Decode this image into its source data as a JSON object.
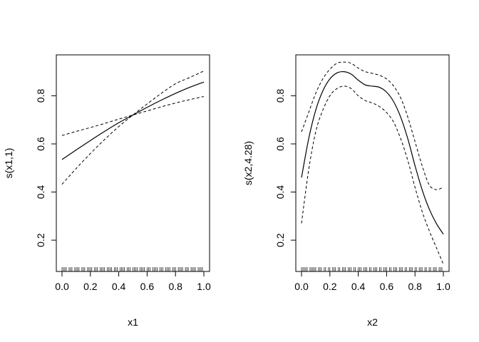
{
  "chart_data": [
    {
      "type": "line",
      "xlabel": "x1",
      "ylabel": "s(x1,1)",
      "xlim": [
        0,
        1
      ],
      "ylim": [
        0.07,
        0.97
      ],
      "xticks": [
        0.0,
        0.2,
        0.4,
        0.6,
        0.8,
        1.0
      ],
      "xtick_labels": [
        "0.0",
        "0.2",
        "0.4",
        "0.6",
        "0.8",
        "1.0"
      ],
      "yticks": [
        0.2,
        0.4,
        0.6,
        0.8
      ],
      "ytick_labels": [
        "0.2",
        "0.4",
        "0.6",
        "0.8"
      ],
      "series": [
        {
          "style": "solid",
          "x": [
            0.0,
            0.1,
            0.2,
            0.3,
            0.4,
            0.5,
            0.6,
            0.7,
            0.8,
            0.9,
            1.0
          ],
          "y": [
            0.535,
            0.575,
            0.614,
            0.652,
            0.688,
            0.72,
            0.752,
            0.782,
            0.81,
            0.835,
            0.857
          ]
        },
        {
          "style": "dashed",
          "x": [
            0.0,
            0.1,
            0.2,
            0.3,
            0.4,
            0.5,
            0.6,
            0.7,
            0.8,
            0.9,
            1.0
          ],
          "y": [
            0.635,
            0.652,
            0.668,
            0.685,
            0.703,
            0.72,
            0.737,
            0.754,
            0.77,
            0.784,
            0.797
          ]
        },
        {
          "style": "dashed",
          "x": [
            0.0,
            0.1,
            0.2,
            0.3,
            0.4,
            0.5,
            0.6,
            0.7,
            0.8,
            0.9,
            1.0
          ],
          "y": [
            0.432,
            0.498,
            0.56,
            0.618,
            0.672,
            0.72,
            0.766,
            0.81,
            0.85,
            0.876,
            0.903
          ]
        }
      ],
      "rug": [
        0.0,
        0.01,
        0.02,
        0.03,
        0.05,
        0.06,
        0.07,
        0.09,
        0.1,
        0.11,
        0.12,
        0.14,
        0.15,
        0.16,
        0.18,
        0.19,
        0.2,
        0.21,
        0.23,
        0.24,
        0.25,
        0.27,
        0.28,
        0.29,
        0.3,
        0.32,
        0.33,
        0.34,
        0.35,
        0.37,
        0.38,
        0.39,
        0.41,
        0.42,
        0.43,
        0.44,
        0.46,
        0.47,
        0.48,
        0.5,
        0.51,
        0.52,
        0.53,
        0.55,
        0.56,
        0.57,
        0.58,
        0.6,
        0.61,
        0.62,
        0.64,
        0.65,
        0.66,
        0.67,
        0.69,
        0.7,
        0.71,
        0.73,
        0.74,
        0.75,
        0.76,
        0.78,
        0.79,
        0.8,
        0.82,
        0.83,
        0.84,
        0.85,
        0.87,
        0.88,
        0.89,
        0.91,
        0.92,
        0.93,
        0.94,
        0.96,
        0.97,
        0.98,
        0.99
      ]
    },
    {
      "type": "line",
      "xlabel": "x2",
      "ylabel": "s(x2,4.28)",
      "xlim": [
        0,
        1
      ],
      "ylim": [
        0.07,
        0.97
      ],
      "xticks": [
        0.0,
        0.2,
        0.4,
        0.6,
        0.8,
        1.0
      ],
      "xtick_labels": [
        "0.0",
        "0.2",
        "0.4",
        "0.6",
        "0.8",
        "1.0"
      ],
      "yticks": [
        0.2,
        0.4,
        0.6,
        0.8
      ],
      "ytick_labels": [
        "0.2",
        "0.4",
        "0.6",
        "0.8"
      ],
      "series": [
        {
          "style": "solid",
          "x": [
            0.0,
            0.05,
            0.1,
            0.15,
            0.2,
            0.25,
            0.3,
            0.35,
            0.4,
            0.45,
            0.5,
            0.55,
            0.6,
            0.65,
            0.7,
            0.75,
            0.8,
            0.85,
            0.9,
            0.95,
            1.0
          ],
          "y": [
            0.46,
            0.62,
            0.74,
            0.82,
            0.87,
            0.895,
            0.9,
            0.89,
            0.865,
            0.845,
            0.84,
            0.835,
            0.815,
            0.775,
            0.71,
            0.62,
            0.51,
            0.41,
            0.33,
            0.27,
            0.225
          ]
        },
        {
          "style": "dashed",
          "x": [
            0.0,
            0.05,
            0.1,
            0.15,
            0.2,
            0.25,
            0.3,
            0.35,
            0.4,
            0.45,
            0.5,
            0.55,
            0.6,
            0.65,
            0.7,
            0.75,
            0.8,
            0.85,
            0.9,
            0.95,
            1.0
          ],
          "y": [
            0.65,
            0.73,
            0.81,
            0.87,
            0.91,
            0.935,
            0.94,
            0.935,
            0.915,
            0.9,
            0.893,
            0.885,
            0.87,
            0.84,
            0.79,
            0.71,
            0.61,
            0.51,
            0.43,
            0.41,
            0.42
          ]
        },
        {
          "style": "dashed",
          "x": [
            0.0,
            0.05,
            0.1,
            0.15,
            0.2,
            0.25,
            0.3,
            0.35,
            0.4,
            0.45,
            0.5,
            0.55,
            0.6,
            0.65,
            0.7,
            0.75,
            0.8,
            0.85,
            0.9,
            0.95,
            1.0
          ],
          "y": [
            0.27,
            0.49,
            0.65,
            0.74,
            0.8,
            0.83,
            0.84,
            0.83,
            0.8,
            0.78,
            0.77,
            0.755,
            0.73,
            0.69,
            0.62,
            0.53,
            0.42,
            0.32,
            0.24,
            0.17,
            0.1
          ]
        }
      ],
      "rug": [
        0.0,
        0.01,
        0.02,
        0.03,
        0.04,
        0.06,
        0.07,
        0.08,
        0.09,
        0.1,
        0.12,
        0.13,
        0.14,
        0.16,
        0.17,
        0.19,
        0.2,
        0.22,
        0.23,
        0.24,
        0.26,
        0.27,
        0.29,
        0.3,
        0.31,
        0.33,
        0.34,
        0.35,
        0.37,
        0.38,
        0.4,
        0.41,
        0.42,
        0.44,
        0.45,
        0.46,
        0.48,
        0.49,
        0.51,
        0.52,
        0.53,
        0.55,
        0.56,
        0.58,
        0.59,
        0.6,
        0.62,
        0.63,
        0.65,
        0.66,
        0.67,
        0.69,
        0.7,
        0.71,
        0.73,
        0.74,
        0.76,
        0.77,
        0.78,
        0.8,
        0.81,
        0.83,
        0.84,
        0.85,
        0.87,
        0.88,
        0.9,
        0.91,
        0.93,
        0.94,
        0.95,
        0.97,
        0.98,
        0.99
      ]
    }
  ]
}
